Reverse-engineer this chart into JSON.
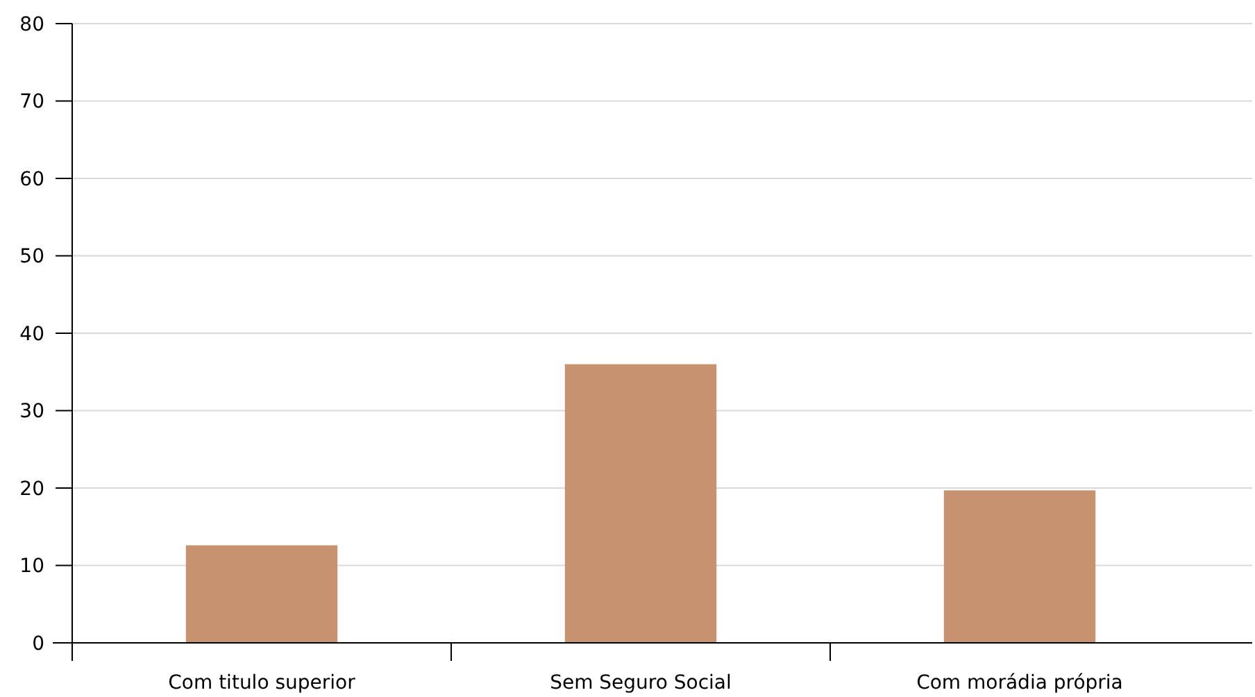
{
  "chart_data": {
    "type": "bar",
    "categories": [
      "Com titulo superior",
      "Sem Seguro Social",
      "Com morádia própria"
    ],
    "values": [
      12.6,
      36,
      19.7
    ],
    "color": "#c69270",
    "ylim": [
      0,
      80
    ],
    "yticks": [
      0,
      10,
      20,
      30,
      40,
      50,
      60,
      70,
      80
    ],
    "grid": "y"
  }
}
